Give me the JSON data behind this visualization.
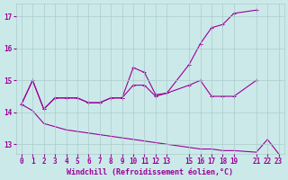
{
  "xlabel": "Windchill (Refroidissement éolien,°C)",
  "background_color": "#cce9e9",
  "line_color": "#990099",
  "grid_color": "#aacccc",
  "xlim": [
    -0.5,
    23.5
  ],
  "ylim": [
    12.7,
    17.4
  ],
  "yticks": [
    13,
    14,
    15,
    16,
    17
  ],
  "xticks": [
    0,
    1,
    2,
    3,
    4,
    5,
    6,
    7,
    8,
    9,
    10,
    11,
    12,
    13,
    15,
    16,
    17,
    18,
    19,
    21,
    22,
    23
  ],
  "series1_x": [
    0,
    1,
    2,
    3,
    4,
    5,
    6,
    7,
    8,
    9,
    10,
    11,
    12,
    13,
    15,
    16,
    17,
    18,
    19,
    21
  ],
  "series1_y": [
    14.25,
    15.0,
    14.1,
    14.45,
    14.45,
    14.45,
    14.3,
    14.3,
    14.45,
    14.45,
    14.85,
    14.85,
    14.5,
    14.6,
    14.85,
    15.0,
    14.5,
    14.5,
    14.5,
    15.0
  ],
  "series2_x": [
    0,
    1,
    2,
    3,
    4,
    5,
    6,
    7,
    8,
    9,
    10,
    11,
    12,
    13,
    15,
    16,
    17,
    18,
    19,
    21
  ],
  "series2_y": [
    14.25,
    15.0,
    14.1,
    14.45,
    14.45,
    14.45,
    14.3,
    14.3,
    14.45,
    14.45,
    15.4,
    15.25,
    14.55,
    14.6,
    15.5,
    16.15,
    16.65,
    16.75,
    17.1,
    17.2
  ],
  "series3_x": [
    0,
    1,
    2,
    3,
    4,
    5,
    6,
    7,
    8,
    9,
    10,
    11,
    12,
    13,
    15,
    16,
    17,
    18,
    19,
    21,
    22,
    23
  ],
  "series3_y": [
    14.25,
    14.05,
    13.65,
    13.55,
    13.45,
    13.4,
    13.35,
    13.3,
    13.25,
    13.2,
    13.15,
    13.1,
    13.05,
    13.0,
    12.9,
    12.85,
    12.85,
    12.8,
    12.8,
    12.75,
    13.15,
    12.7
  ]
}
